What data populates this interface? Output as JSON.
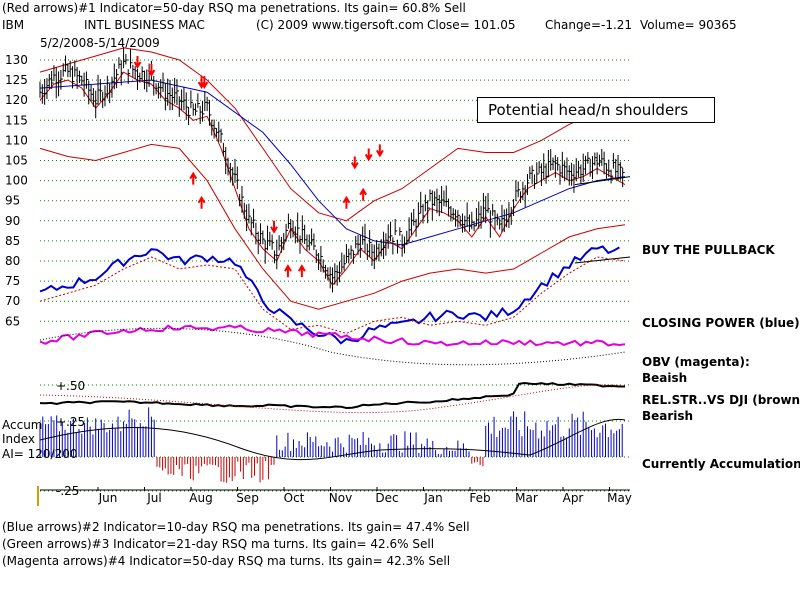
{
  "header": {
    "indicator1": "(Red arrows)#1 Indicator=50-day RSQ ma penetrations.  Its gain= 60.8% Sell",
    "ticker": "IBM",
    "company": "INTL BUSINESS MAC",
    "copyright": "(C) 2009 www.tigersoft.com",
    "close": "Close=   101.05",
    "change": "Change=-1.21",
    "volume": "Volume=  90365",
    "date_range": "5/2/2008-5/14/2009"
  },
  "annotations": {
    "head_shoulders": "Potential head/n shoulders",
    "buy_pullback": "BUY THE PULLBACK",
    "closing_power": "CLOSING POWER (blue):",
    "obv_label": "OBV (magenta):",
    "obv_state": "Beaish",
    "relstr_label": "REL.STR..VS DJI (brown):",
    "relstr_state": "Bearish",
    "accum_label1": "Accum",
    "accum_label2": "Index",
    "accum_label3": "AI= 120/200",
    "accum_state": "Currently Accumulation",
    "plus50": "+.50",
    "plus25": "+.25",
    "minus25": "-.25"
  },
  "footer": {
    "indicator2": "(Blue arrows)#2 Indicator=10-day RSQ ma penetrations.  Its gain= 47.4% Sell",
    "indicator3": "(Green arrows)#3 Indicator=21-day RSQ ma turns.  Its gain= 42.6% Sell",
    "indicator4": "(Magenta arrows)#4 Indicator=50-day RSQ ma turns.  Its gain= 42.3% Sell"
  },
  "colors": {
    "price": "#000000",
    "bands": "#cc0000",
    "ma_blue": "#0000cc",
    "closing_power": "#0000cc",
    "obv": "#e000e0",
    "relstr": "#000000",
    "accum_pos": "#0000cc",
    "accum_neg": "#cc0000",
    "grid": "#008800",
    "arrow": "#ff0000"
  },
  "chart_data": {
    "type": "line",
    "title": "INTL BUSINESS MAC (IBM) 5/2/2008-5/14/2009",
    "ylim": [
      60,
      132
    ],
    "yticks": [
      65,
      70,
      75,
      80,
      85,
      90,
      95,
      100,
      105,
      110,
      115,
      120,
      125,
      130
    ],
    "months": [
      "Jun",
      "Jul",
      "Aug",
      "Sep",
      "Oct",
      "Nov",
      "Dec",
      "Jan",
      "Feb",
      "Mar",
      "Apr",
      "May"
    ],
    "price_points": [
      [
        0,
        122
      ],
      [
        0.5,
        126
      ],
      [
        1,
        127
      ],
      [
        1.5,
        125
      ],
      [
        2,
        120
      ],
      [
        2.5,
        124
      ],
      [
        3,
        129
      ],
      [
        3.5,
        127
      ],
      [
        4,
        126
      ],
      [
        4.5,
        122
      ],
      [
        5,
        120
      ],
      [
        5.5,
        117
      ],
      [
        6,
        118
      ],
      [
        6.5,
        110
      ],
      [
        7,
        100
      ],
      [
        7.5,
        90
      ],
      [
        8,
        85
      ],
      [
        8.5,
        82
      ],
      [
        9,
        90
      ],
      [
        9.5,
        85
      ],
      [
        10,
        82
      ],
      [
        10.5,
        76
      ],
      [
        11,
        80
      ],
      [
        11.5,
        85
      ],
      [
        12,
        82
      ],
      [
        12.5,
        87
      ],
      [
        13,
        85
      ],
      [
        13.5,
        90
      ],
      [
        14,
        95
      ],
      [
        14.5,
        94
      ],
      [
        15,
        92
      ],
      [
        15.5,
        88
      ],
      [
        16,
        93
      ],
      [
        16.5,
        88
      ],
      [
        17,
        95
      ],
      [
        17.5,
        100
      ],
      [
        18,
        102
      ],
      [
        18.5,
        104
      ],
      [
        19,
        102
      ],
      [
        19.5,
        103
      ],
      [
        20,
        105
      ],
      [
        20.5,
        103
      ],
      [
        21,
        101
      ]
    ],
    "upper_band": [
      [
        0,
        127
      ],
      [
        1,
        129
      ],
      [
        2,
        131
      ],
      [
        3,
        133
      ],
      [
        4,
        132
      ],
      [
        5,
        130
      ],
      [
        6,
        125
      ],
      [
        7,
        118
      ],
      [
        8,
        108
      ],
      [
        9,
        98
      ],
      [
        10,
        92
      ],
      [
        11,
        90
      ],
      [
        12,
        95
      ],
      [
        13,
        98
      ],
      [
        14,
        103
      ],
      [
        15,
        108
      ],
      [
        16,
        107
      ],
      [
        17,
        107
      ],
      [
        18,
        110
      ],
      [
        19,
        114
      ],
      [
        20,
        117
      ],
      [
        21,
        118
      ]
    ],
    "lower_band": [
      [
        0,
        108
      ],
      [
        1,
        106
      ],
      [
        2,
        105
      ],
      [
        3,
        107
      ],
      [
        4,
        109
      ],
      [
        5,
        108
      ],
      [
        6,
        100
      ],
      [
        7,
        88
      ],
      [
        8,
        78
      ],
      [
        9,
        70
      ],
      [
        10,
        68
      ],
      [
        11,
        70
      ],
      [
        12,
        72
      ],
      [
        13,
        75
      ],
      [
        14,
        77
      ],
      [
        15,
        78
      ],
      [
        16,
        77
      ],
      [
        17,
        78
      ],
      [
        18,
        82
      ],
      [
        19,
        86
      ],
      [
        20,
        88
      ],
      [
        21,
        89
      ]
    ],
    "ma_blue": [
      [
        0,
        123
      ],
      [
        2,
        124
      ],
      [
        4,
        125
      ],
      [
        6,
        122
      ],
      [
        8,
        112
      ],
      [
        9,
        104
      ],
      [
        10,
        95
      ],
      [
        11,
        88
      ],
      [
        12,
        85
      ],
      [
        13,
        84
      ],
      [
        14,
        86
      ],
      [
        15,
        88
      ],
      [
        16,
        90
      ],
      [
        17,
        92
      ],
      [
        18,
        95
      ],
      [
        19,
        98
      ],
      [
        20,
        100
      ],
      [
        21,
        101
      ]
    ],
    "closing_power": [
      [
        0,
        72
      ],
      [
        1,
        74
      ],
      [
        2,
        76
      ],
      [
        3,
        80
      ],
      [
        4,
        83
      ],
      [
        5,
        80
      ],
      [
        6,
        81
      ],
      [
        7,
        80
      ],
      [
        8,
        70
      ],
      [
        9,
        65
      ],
      [
        10,
        62
      ],
      [
        11,
        60
      ],
      [
        12,
        63
      ],
      [
        13,
        64
      ],
      [
        14,
        66
      ],
      [
        15,
        67
      ],
      [
        16,
        66
      ],
      [
        17,
        68
      ],
      [
        18,
        74
      ],
      [
        19,
        79
      ],
      [
        20,
        83
      ],
      [
        21,
        82
      ]
    ],
    "arrows": [
      {
        "x": 3.5,
        "y": 131,
        "dir": "down"
      },
      {
        "x": 4.0,
        "y": 129,
        "dir": "down"
      },
      {
        "x": 5.8,
        "y": 126,
        "dir": "down"
      },
      {
        "x": 5.9,
        "y": 126,
        "dir": "down"
      },
      {
        "x": 5.5,
        "y": 99,
        "dir": "up"
      },
      {
        "x": 5.8,
        "y": 93,
        "dir": "up"
      },
      {
        "x": 8.4,
        "y": 90,
        "dir": "down"
      },
      {
        "x": 8.9,
        "y": 76,
        "dir": "up"
      },
      {
        "x": 9.4,
        "y": 76,
        "dir": "up"
      },
      {
        "x": 11.3,
        "y": 106,
        "dir": "down"
      },
      {
        "x": 11.8,
        "y": 108,
        "dir": "down"
      },
      {
        "x": 12.2,
        "y": 109,
        "dir": "down"
      },
      {
        "x": 11.0,
        "y": 93,
        "dir": "up"
      },
      {
        "x": 11.6,
        "y": 95,
        "dir": "up"
      }
    ]
  }
}
